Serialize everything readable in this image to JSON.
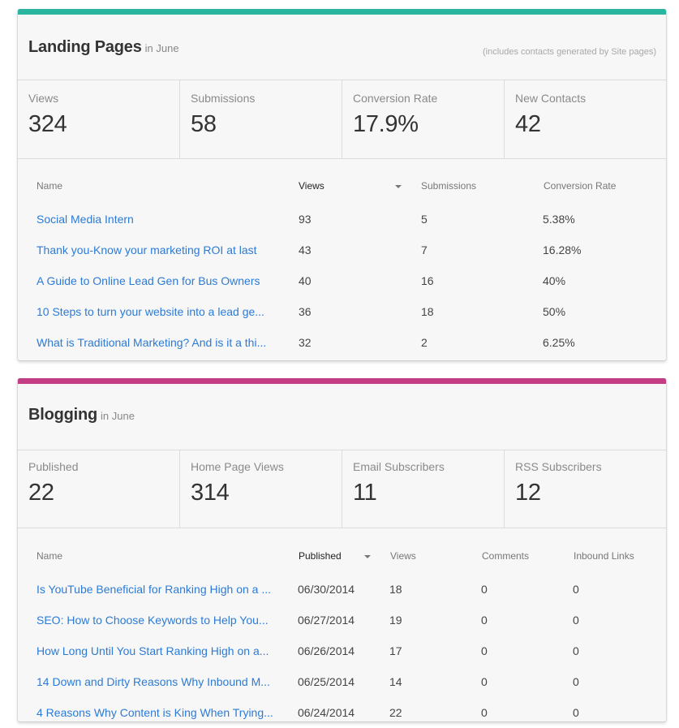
{
  "landing": {
    "accent": "#2ab5a0",
    "title": "Landing Pages",
    "period": "in June",
    "note": "(includes contacts generated by Site pages)",
    "stats": [
      {
        "label": "Views",
        "value": "324"
      },
      {
        "label": "Submissions",
        "value": "58"
      },
      {
        "label": "Conversion Rate",
        "value": "17.9%"
      },
      {
        "label": "New Contacts",
        "value": "42"
      }
    ],
    "columns": [
      "Name",
      "Views",
      "Submissions",
      "Conversion Rate"
    ],
    "sorted_column": "Views",
    "rows": [
      {
        "name": "Social Media Intern",
        "views": "93",
        "submissions": "5",
        "rate": "5.38%"
      },
      {
        "name": "Thank you-Know your marketing ROI at last",
        "views": "43",
        "submissions": "7",
        "rate": "16.28%"
      },
      {
        "name": "A Guide to Online Lead Gen for Bus Owners",
        "views": "40",
        "submissions": "16",
        "rate": "40%"
      },
      {
        "name": "10 Steps to turn your website into a lead ge...",
        "views": "36",
        "submissions": "18",
        "rate": "50%"
      },
      {
        "name": "What is Traditional Marketing? And is it a thi...",
        "views": "32",
        "submissions": "2",
        "rate": "6.25%"
      }
    ]
  },
  "blogging": {
    "accent": "#c23d84",
    "title": "Blogging",
    "period": "in June",
    "stats": [
      {
        "label": "Published",
        "value": "22"
      },
      {
        "label": "Home Page Views",
        "value": "314"
      },
      {
        "label": "Email Subscribers",
        "value": "11"
      },
      {
        "label": "RSS Subscribers",
        "value": "12"
      }
    ],
    "columns": [
      "Name",
      "Published",
      "Views",
      "Comments",
      "Inbound Links"
    ],
    "sorted_column": "Published",
    "rows": [
      {
        "name": "Is YouTube Beneficial for Ranking High on a ...",
        "published": "06/30/2014",
        "views": "18",
        "comments": "0",
        "links": "0"
      },
      {
        "name": "SEO: How to Choose Keywords to Help You...",
        "published": "06/27/2014",
        "views": "19",
        "comments": "0",
        "links": "0"
      },
      {
        "name": "How Long Until You Start Ranking High on a...",
        "published": "06/26/2014",
        "views": "17",
        "comments": "0",
        "links": "0"
      },
      {
        "name": "14 Down and Dirty Reasons Why Inbound M...",
        "published": "06/25/2014",
        "views": "14",
        "comments": "0",
        "links": "0"
      },
      {
        "name": "4 Reasons Why Content is King When Trying...",
        "published": "06/24/2014",
        "views": "22",
        "comments": "0",
        "links": "0"
      }
    ]
  }
}
